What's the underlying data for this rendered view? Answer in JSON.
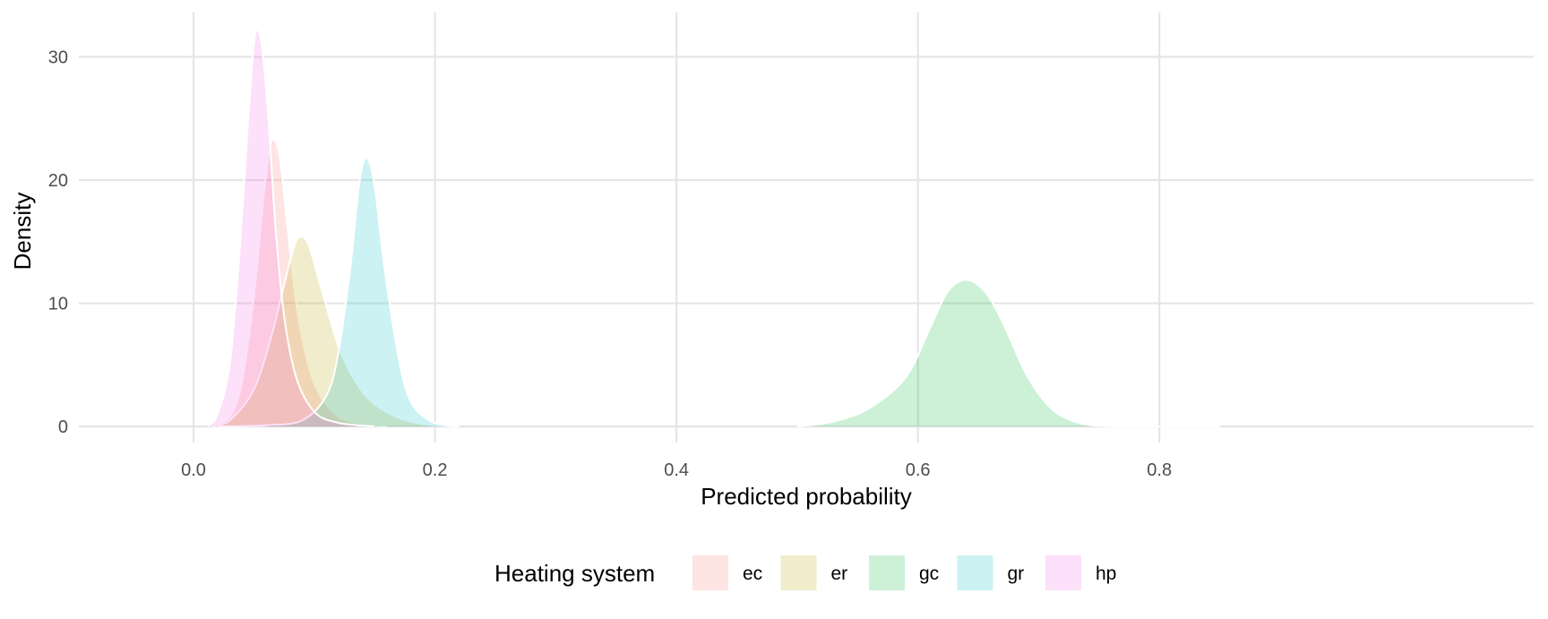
{
  "chart_data": {
    "type": "area",
    "subtype": "density",
    "title": "",
    "xlabel": "Predicted probability",
    "ylabel": "Density",
    "xlim": [
      -0.095,
      1.11
    ],
    "ylim": [
      -1.3,
      33.6
    ],
    "x_ticks": [
      0.0,
      0.2,
      0.4,
      0.6,
      0.8
    ],
    "x_tick_labels": [
      "0.0",
      "0.2",
      "0.4",
      "0.6",
      "0.8"
    ],
    "y_ticks": [
      0,
      10,
      20,
      30
    ],
    "y_tick_labels": [
      "0",
      "10",
      "20",
      "30"
    ],
    "grid": true,
    "legend": {
      "title": "Heating system",
      "position": "bottom"
    },
    "series": [
      {
        "name": "ec",
        "color": "#F8766D",
        "x": [
          0.015,
          0.03,
          0.04,
          0.05,
          0.058,
          0.063,
          0.067,
          0.072,
          0.078,
          0.085,
          0.095,
          0.105,
          0.12,
          0.14,
          0.16
        ],
        "y": [
          0,
          0.8,
          3.5,
          10.5,
          18.5,
          22.5,
          23.3,
          21.5,
          16.0,
          10.0,
          5.0,
          2.5,
          0.8,
          0.2,
          0
        ]
      },
      {
        "name": "er",
        "color": "#B79F00",
        "x": [
          0.015,
          0.03,
          0.05,
          0.065,
          0.075,
          0.083,
          0.088,
          0.095,
          0.105,
          0.12,
          0.135,
          0.15,
          0.17,
          0.19,
          0.22
        ],
        "y": [
          0,
          0.5,
          3.0,
          7.5,
          11.5,
          14.5,
          15.4,
          14.8,
          11.5,
          6.5,
          3.5,
          1.8,
          0.7,
          0.2,
          0
        ]
      },
      {
        "name": "gc",
        "color": "#00BA38",
        "x": [
          0.5,
          0.53,
          0.56,
          0.59,
          0.61,
          0.625,
          0.64,
          0.655,
          0.67,
          0.69,
          0.71,
          0.73,
          0.75,
          0.785,
          0.85
        ],
        "y": [
          0,
          0.4,
          1.5,
          4.0,
          8.0,
          11.0,
          11.9,
          11.0,
          8.5,
          4.2,
          1.5,
          0.4,
          0.05,
          0,
          0
        ]
      },
      {
        "name": "gr",
        "color": "#00BFC4",
        "x": [
          0.02,
          0.06,
          0.09,
          0.11,
          0.12,
          0.13,
          0.137,
          0.143,
          0.15,
          0.158,
          0.17,
          0.18,
          0.195,
          0.21,
          0.22
        ],
        "y": [
          0,
          0.1,
          0.5,
          2.5,
          6.0,
          13.0,
          19.5,
          21.8,
          19.5,
          13.0,
          5.5,
          2.0,
          0.5,
          0.1,
          0
        ]
      },
      {
        "name": "hp",
        "color": "#F564E3",
        "x": [
          0.012,
          0.02,
          0.03,
          0.038,
          0.045,
          0.05,
          0.053,
          0.057,
          0.062,
          0.068,
          0.075,
          0.085,
          0.1,
          0.12,
          0.15
        ],
        "y": [
          0,
          1.0,
          5.0,
          14.0,
          24.5,
          31.0,
          32.2,
          30.5,
          25.0,
          16.0,
          9.0,
          4.0,
          1.2,
          0.3,
          0
        ]
      }
    ]
  }
}
